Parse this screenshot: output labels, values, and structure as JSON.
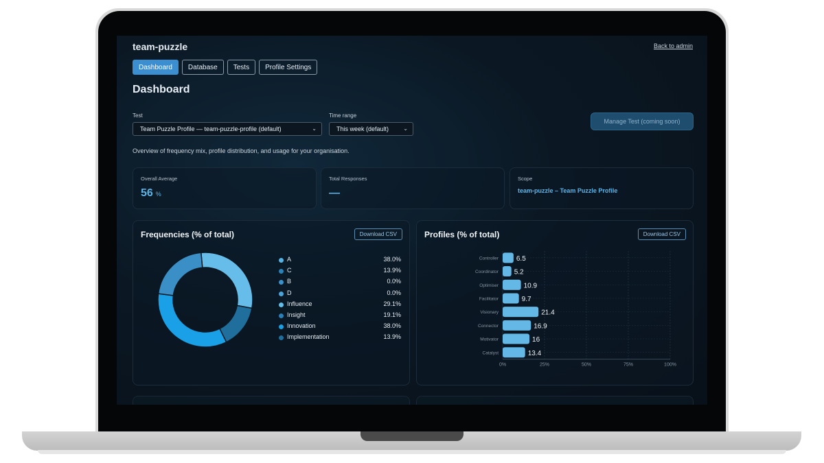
{
  "app": {
    "org_name": "team-puzzle",
    "back_link": "Back to admin"
  },
  "tabs": [
    {
      "label": "Dashboard",
      "active": true
    },
    {
      "label": "Database",
      "active": false
    },
    {
      "label": "Tests",
      "active": false
    },
    {
      "label": "Profile Settings",
      "active": false
    }
  ],
  "page_title": "Dashboard",
  "filters": {
    "test_label": "Test",
    "test_value": "Team Puzzle Profile — team-puzzle-profile (default)",
    "time_label": "Time range",
    "time_value": "This week (default)",
    "chevron_icon": "chevron-down-icon"
  },
  "manage_button": "Manage Test (coming soon)",
  "overview": "Overview of frequency mix, profile distribution, and usage for your organisation.",
  "stats": {
    "average": {
      "label": "Overall Average",
      "value": "56",
      "unit": "%"
    },
    "responses": {
      "label": "Total Responses",
      "value": "—"
    },
    "scope": {
      "label": "Scope",
      "value": "team-puzzle – Team Puzzle Profile"
    }
  },
  "frequencies_card": {
    "title": "Frequencies (% of total)",
    "csv_label": "Download CSV"
  },
  "profiles_card": {
    "title": "Profiles (% of total)",
    "csv_label": "Download CSV"
  },
  "colors": {
    "accent": "#3b8fd0",
    "bar": "#63b8e6",
    "value_text": "#5fb4e6"
  },
  "chart_data": [
    {
      "type": "pie",
      "title": "Frequencies (% of total)",
      "donut": true,
      "legend": "right",
      "categories": [
        "A",
        "C",
        "B",
        "D",
        "Influence",
        "Insight",
        "Innovation",
        "Implementation"
      ],
      "values": [
        38.0,
        13.9,
        0.0,
        0.0,
        29.1,
        19.1,
        38.0,
        13.9
      ],
      "labels": [
        "38.0%",
        "13.9%",
        "0.0%",
        "0.0%",
        "29.1%",
        "19.1%",
        "38.0%",
        "13.9%"
      ],
      "colors": [
        "#56b2e3",
        "#2b82b8",
        "#3a90c8",
        "#4aa3d9",
        "#62bde8",
        "#2a7fb5",
        "#1a9fe0",
        "#1f6e9c"
      ],
      "ring": [
        {
          "name": "",
          "value": 29.3,
          "color": "#67bde9"
        },
        {
          "name": "",
          "value": 14.8,
          "color": "#1f6e9c"
        },
        {
          "name": "",
          "value": 34.4,
          "color": "#1aa0e6"
        },
        {
          "name": "",
          "value": 21.5,
          "color": "#3a8fc6"
        }
      ]
    },
    {
      "type": "bar",
      "orientation": "horizontal",
      "title": "Profiles (% of total)",
      "categories": [
        "Controller",
        "Coordinator",
        "Optimiser",
        "Facilitator",
        "Visionary",
        "Connector",
        "Motivator",
        "Catalyst"
      ],
      "values": [
        6.5,
        5.2,
        10.9,
        9.7,
        21.4,
        16.9,
        16,
        13.4
      ],
      "value_labels": [
        "6.5",
        "5.2",
        "10.9",
        "9.7",
        "21.4",
        "16.9",
        "16",
        "13.4"
      ],
      "xlim": [
        0,
        100
      ],
      "ticks": [
        "0%",
        "25%",
        "50%",
        "75%",
        "100%"
      ],
      "tick_values": [
        0,
        25,
        50,
        75,
        100
      ],
      "grid": true
    }
  ]
}
